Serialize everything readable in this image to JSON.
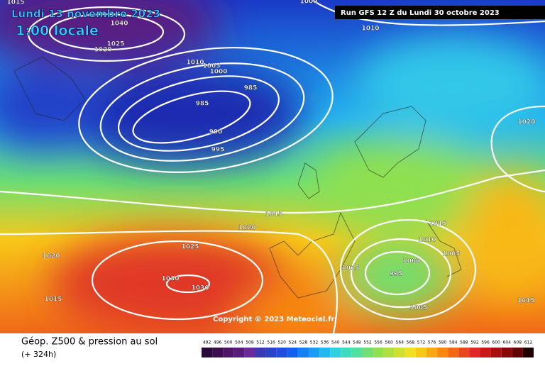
{
  "header": {
    "date": "Lundi 13 novembre 2023",
    "time": "1:00 locale",
    "run": "Run GFS 12 Z du Lundi 30 octobre 2023"
  },
  "copyright": "Copyright © 2023 Meteociel.fr",
  "footer": {
    "title": "Géop. Z500 & pression au sol",
    "lead": "(+ 324h)"
  },
  "isobar_labels": [
    1000,
    1040,
    1025,
    1020,
    1010,
    1010,
    1005,
    1000,
    985,
    985,
    990,
    995,
    1020,
    1015,
    1015,
    1020,
    1025,
    1020,
    1030,
    1030,
    1015,
    1015,
    1010,
    1005,
    1000,
    1015,
    995,
    1005,
    1015
  ],
  "scale": {
    "values": [
      492,
      496,
      500,
      504,
      508,
      512,
      516,
      520,
      524,
      528,
      532,
      536,
      540,
      544,
      548,
      552,
      556,
      560,
      564,
      568,
      572,
      576,
      580,
      584,
      588,
      592,
      596,
      600,
      604,
      608,
      612
    ],
    "colors": [
      "#2a0a3a",
      "#3c1050",
      "#501468",
      "#5a1a80",
      "#6a2a9a",
      "#3a3ab0",
      "#2a44c8",
      "#1c4ee0",
      "#1060f0",
      "#1480f4",
      "#1a9cf4",
      "#22b8f0",
      "#30d0e0",
      "#40dcc0",
      "#50e0a0",
      "#70e070",
      "#90e050",
      "#b0e040",
      "#d0e030",
      "#f0e020",
      "#f8c818",
      "#f8a810",
      "#f88810",
      "#f06818",
      "#e84820",
      "#e02828",
      "#c81818",
      "#a81010",
      "#880808",
      "#600404",
      "#200000"
    ]
  }
}
